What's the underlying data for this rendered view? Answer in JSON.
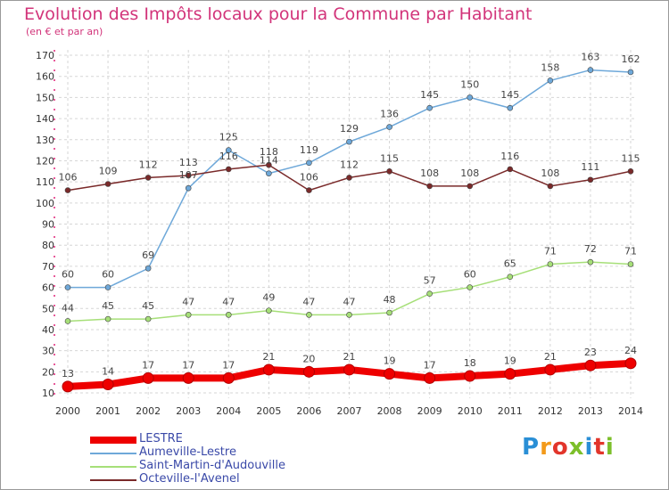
{
  "header": {
    "title": "Evolution des Impôts locaux pour la Commune par Habitant",
    "subtitle": "(en € et par an)"
  },
  "logo": {
    "text": "Proxiti",
    "colors": [
      "#2a8fd6",
      "#f39a1a",
      "#e2352b",
      "#7cbf2a",
      "#2a8fd6",
      "#e2352b",
      "#7cbf2a"
    ]
  },
  "chart_data": {
    "type": "line",
    "title": "Evolution des Impôts locaux pour la Commune par Habitant",
    "subtitle": "(en € et par an)",
    "xlabel": "",
    "ylabel": "",
    "categories": [
      "2000",
      "2001",
      "2002",
      "2003",
      "2004",
      "2005",
      "2006",
      "2007",
      "2008",
      "2009",
      "2010",
      "2011",
      "2012",
      "2013",
      "2014"
    ],
    "ylim": [
      10,
      170
    ],
    "yticks": [
      10,
      20,
      30,
      40,
      50,
      60,
      70,
      80,
      90,
      100,
      110,
      120,
      130,
      140,
      150,
      160,
      170
    ],
    "grid": true,
    "legend_position": "bottom-left",
    "series": [
      {
        "name": "LESTRE",
        "color": "#ee0000",
        "values": [
          13,
          14,
          17,
          17,
          17,
          21,
          20,
          21,
          19,
          17,
          18,
          19,
          21,
          23,
          24
        ],
        "emphasis": true
      },
      {
        "name": "Aumeville-Lestre",
        "color": "#6ea8d9",
        "values": [
          60,
          60,
          69,
          107,
          125,
          114,
          119,
          129,
          136,
          145,
          150,
          145,
          158,
          163,
          162
        ]
      },
      {
        "name": "Saint-Martin-d'Audouville",
        "color": "#a6df78",
        "values": [
          44,
          45,
          45,
          47,
          47,
          49,
          47,
          47,
          48,
          57,
          60,
          65,
          71,
          72,
          71
        ]
      },
      {
        "name": "Octeville-l'Avenel",
        "color": "#7a2a2a",
        "values": [
          106,
          109,
          112,
          113,
          116,
          118,
          106,
          112,
          115,
          108,
          108,
          116,
          108,
          111,
          115
        ]
      }
    ]
  }
}
